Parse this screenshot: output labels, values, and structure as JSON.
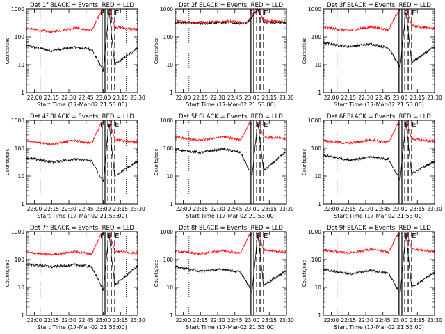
{
  "chart_data": [
    {
      "type": "line",
      "title": "Det 1f BLACK = Events, RED = LLD",
      "xlabel": "Start Time (17-Mar-02 21:53:00)",
      "ylabel": "Counts/sec",
      "yscale": "log",
      "ylim": [
        1,
        1000
      ],
      "xlim": [
        "21:53",
        "23:30"
      ],
      "xticks": [
        "22:00",
        "22:15",
        "22:30",
        "22:45",
        "23:00",
        "23:15",
        "23:30"
      ],
      "yticks": [
        "1",
        "10",
        "100",
        "1000"
      ],
      "markers": [
        "F",
        "S",
        "E"
      ],
      "series": [
        {
          "color": "#000000",
          "values": [
            {
              "x": "21:53",
              "y": 48
            },
            {
              "x": "22:15",
              "y": 32
            },
            {
              "x": "22:35",
              "y": 42
            },
            {
              "x": "22:50",
              "y": 36
            },
            {
              "x": "23:00",
              "y": 6
            },
            {
              "x": "23:05",
              "y": 900
            },
            {
              "x": "23:10",
              "y": 10
            },
            {
              "x": "23:30",
              "y": 40
            }
          ]
        },
        {
          "color": "#ff0000",
          "values": [
            {
              "x": "21:53",
              "y": 200
            },
            {
              "x": "22:15",
              "y": 150
            },
            {
              "x": "22:35",
              "y": 210
            },
            {
              "x": "22:50",
              "y": 170
            },
            {
              "x": "23:00",
              "y": 1200
            },
            {
              "x": "23:05",
              "y": 1200
            },
            {
              "x": "23:10",
              "y": 230
            },
            {
              "x": "23:30",
              "y": 180
            }
          ]
        }
      ]
    },
    {
      "type": "line",
      "title": "Det 2f BLACK = Events, RED = LLD",
      "xlabel": "Start Time (17-Mar-02 21:53:00)",
      "ylabel": "Counts/sec",
      "yscale": "log",
      "ylim": [
        1,
        1000
      ],
      "xlim": [
        "21:53",
        "23:30"
      ],
      "xticks": [
        "22:00",
        "22:15",
        "22:30",
        "22:45",
        "23:00",
        "23:15",
        "23:30"
      ],
      "yticks": [
        "1",
        "10",
        "100",
        "1000"
      ],
      "markers": [
        "F",
        "S",
        "E"
      ],
      "series": [
        {
          "color": "#000000",
          "values": [
            {
              "x": "21:53",
              "y": 330
            },
            {
              "x": "22:15",
              "y": 300
            },
            {
              "x": "22:40",
              "y": 330
            },
            {
              "x": "22:55",
              "y": 300
            },
            {
              "x": "23:05",
              "y": 1000
            },
            {
              "x": "23:10",
              "y": 350
            },
            {
              "x": "23:30",
              "y": 320
            }
          ]
        },
        {
          "color": "#ff0000",
          "values": [
            {
              "x": "21:53",
              "y": 360
            },
            {
              "x": "22:15",
              "y": 330
            },
            {
              "x": "22:40",
              "y": 370
            },
            {
              "x": "22:55",
              "y": 320
            },
            {
              "x": "23:05",
              "y": 1300
            },
            {
              "x": "23:10",
              "y": 380
            },
            {
              "x": "23:30",
              "y": 350
            }
          ]
        }
      ]
    },
    {
      "type": "line",
      "title": "Det 3f BLACK = Events, RED = LLD",
      "xlabel": "Start Time (17-Mar-02 21:53:00)",
      "ylabel": "Counts/sec",
      "yscale": "log",
      "ylim": [
        1,
        1000
      ],
      "xlim": [
        "21:53",
        "23:30"
      ],
      "xticks": [
        "22:00",
        "22:15",
        "22:30",
        "22:45",
        "23:00",
        "23:15",
        "23:30"
      ],
      "yticks": [
        "1",
        "10",
        "100",
        "1000"
      ],
      "markers": [
        "F",
        "S",
        "E"
      ],
      "series": [
        {
          "color": "#000000",
          "values": [
            {
              "x": "21:53",
              "y": 60
            },
            {
              "x": "22:15",
              "y": 45
            },
            {
              "x": "22:35",
              "y": 55
            },
            {
              "x": "22:50",
              "y": 40
            },
            {
              "x": "23:00",
              "y": 8
            },
            {
              "x": "23:05",
              "y": 900
            },
            {
              "x": "23:10",
              "y": 12
            },
            {
              "x": "23:30",
              "y": 45
            }
          ]
        },
        {
          "color": "#ff0000",
          "values": [
            {
              "x": "21:53",
              "y": 220
            },
            {
              "x": "22:15",
              "y": 170
            },
            {
              "x": "22:35",
              "y": 230
            },
            {
              "x": "22:50",
              "y": 180
            },
            {
              "x": "23:00",
              "y": 1200
            },
            {
              "x": "23:05",
              "y": 1200
            },
            {
              "x": "23:10",
              "y": 250
            },
            {
              "x": "23:30",
              "y": 200
            }
          ]
        }
      ]
    },
    {
      "type": "line",
      "title": "Det 4f BLACK = Events, RED = LLD",
      "xlabel": "Start Time (17-Mar-02 21:53:00)",
      "ylabel": "Counts/sec",
      "yscale": "log",
      "ylim": [
        1,
        1000
      ],
      "xlim": [
        "21:53",
        "23:30"
      ],
      "xticks": [
        "22:00",
        "22:15",
        "22:30",
        "22:45",
        "23:00",
        "23:15",
        "23:30"
      ],
      "yticks": [
        "1",
        "10",
        "100",
        "1000"
      ],
      "markers": [
        "F",
        "S",
        "E"
      ],
      "series": [
        {
          "color": "#000000",
          "values": [
            {
              "x": "21:53",
              "y": 45
            },
            {
              "x": "22:15",
              "y": 32
            },
            {
              "x": "22:35",
              "y": 40
            },
            {
              "x": "22:50",
              "y": 35
            },
            {
              "x": "23:00",
              "y": 6
            },
            {
              "x": "23:05",
              "y": 900
            },
            {
              "x": "23:10",
              "y": 10
            },
            {
              "x": "23:30",
              "y": 35
            }
          ]
        },
        {
          "color": "#ff0000",
          "values": [
            {
              "x": "21:53",
              "y": 180
            },
            {
              "x": "22:15",
              "y": 140
            },
            {
              "x": "22:35",
              "y": 190
            },
            {
              "x": "22:50",
              "y": 150
            },
            {
              "x": "23:00",
              "y": 1200
            },
            {
              "x": "23:05",
              "y": 1200
            },
            {
              "x": "23:10",
              "y": 200
            },
            {
              "x": "23:30",
              "y": 160
            }
          ]
        }
      ]
    },
    {
      "type": "line",
      "title": "Det 5f BLACK = Events, RED = LLD",
      "xlabel": "Start Time (17-Mar-02 21:53:00)",
      "ylabel": "Counts/sec",
      "yscale": "log",
      "ylim": [
        1,
        1000
      ],
      "xlim": [
        "21:53",
        "23:30"
      ],
      "xticks": [
        "22:00",
        "22:15",
        "22:30",
        "22:45",
        "23:00",
        "23:15",
        "23:30"
      ],
      "yticks": [
        "1",
        "10",
        "100",
        "1000"
      ],
      "markers": [
        "F",
        "S",
        "E"
      ],
      "series": [
        {
          "color": "#000000",
          "values": [
            {
              "x": "21:53",
              "y": 90
            },
            {
              "x": "22:15",
              "y": 70
            },
            {
              "x": "22:35",
              "y": 95
            },
            {
              "x": "22:50",
              "y": 70
            },
            {
              "x": "23:00",
              "y": 10
            },
            {
              "x": "23:05",
              "y": 900
            },
            {
              "x": "23:10",
              "y": 15
            },
            {
              "x": "23:30",
              "y": 80
            }
          ]
        },
        {
          "color": "#ff0000",
          "values": [
            {
              "x": "21:53",
              "y": 250
            },
            {
              "x": "22:15",
              "y": 190
            },
            {
              "x": "22:35",
              "y": 260
            },
            {
              "x": "22:50",
              "y": 200
            },
            {
              "x": "23:00",
              "y": 1200
            },
            {
              "x": "23:05",
              "y": 1200
            },
            {
              "x": "23:10",
              "y": 250
            },
            {
              "x": "23:30",
              "y": 220
            }
          ]
        }
      ]
    },
    {
      "type": "line",
      "title": "Det 6f BLACK = Events, RED = LLD",
      "xlabel": "Start Time (17-Mar-02 21:53:00)",
      "ylabel": "Counts/sec",
      "yscale": "log",
      "ylim": [
        1,
        1000
      ],
      "xlim": [
        "21:53",
        "23:30"
      ],
      "xticks": [
        "22:00",
        "22:15",
        "22:30",
        "22:45",
        "23:00",
        "23:15",
        "23:30"
      ],
      "yticks": [
        "1",
        "10",
        "100",
        "1000"
      ],
      "markers": [
        "F",
        "S",
        "E"
      ],
      "series": [
        {
          "color": "#000000",
          "values": [
            {
              "x": "21:53",
              "y": 55
            },
            {
              "x": "22:15",
              "y": 38
            },
            {
              "x": "22:35",
              "y": 48
            },
            {
              "x": "22:50",
              "y": 40
            },
            {
              "x": "23:00",
              "y": 7
            },
            {
              "x": "23:05",
              "y": 900
            },
            {
              "x": "23:10",
              "y": 12
            },
            {
              "x": "23:30",
              "y": 35
            }
          ]
        },
        {
          "color": "#ff0000",
          "values": [
            {
              "x": "21:53",
              "y": 190
            },
            {
              "x": "22:15",
              "y": 150
            },
            {
              "x": "22:35",
              "y": 200
            },
            {
              "x": "22:50",
              "y": 160
            },
            {
              "x": "23:00",
              "y": 1200
            },
            {
              "x": "23:05",
              "y": 1200
            },
            {
              "x": "23:10",
              "y": 220
            },
            {
              "x": "23:30",
              "y": 170
            }
          ]
        }
      ]
    },
    {
      "type": "line",
      "title": "Det 7f BLACK = Events, RED = LLD",
      "xlabel": "Start Time (17-Mar-02 21:53:00)",
      "ylabel": "Counts/sec",
      "yscale": "log",
      "ylim": [
        1,
        1000
      ],
      "xlim": [
        "21:53",
        "23:30"
      ],
      "xticks": [
        "22:00",
        "22:15",
        "22:30",
        "22:45",
        "23:00",
        "23:15",
        "23:30"
      ],
      "yticks": [
        "1",
        "10",
        "100",
        "1000"
      ],
      "markers": [
        "F",
        "S",
        "E"
      ],
      "series": [
        {
          "color": "#000000",
          "values": [
            {
              "x": "21:53",
              "y": 70
            },
            {
              "x": "22:15",
              "y": 55
            },
            {
              "x": "22:35",
              "y": 65
            },
            {
              "x": "22:50",
              "y": 55
            },
            {
              "x": "23:00",
              "y": 8
            },
            {
              "x": "23:05",
              "y": 900
            },
            {
              "x": "23:10",
              "y": 12
            },
            {
              "x": "23:30",
              "y": 60
            }
          ]
        },
        {
          "color": "#ff0000",
          "values": [
            {
              "x": "21:53",
              "y": 180
            },
            {
              "x": "22:15",
              "y": 150
            },
            {
              "x": "22:35",
              "y": 190
            },
            {
              "x": "22:50",
              "y": 160
            },
            {
              "x": "23:00",
              "y": 1200
            },
            {
              "x": "23:05",
              "y": 1200
            },
            {
              "x": "23:10",
              "y": 200
            },
            {
              "x": "23:30",
              "y": 170
            }
          ]
        }
      ]
    },
    {
      "type": "line",
      "title": "Det 8f BLACK = Events, RED = LLD",
      "xlabel": "Start Time (17-Mar-02 21:53:00)",
      "ylabel": "Counts/sec",
      "yscale": "log",
      "ylim": [
        1,
        1000
      ],
      "xlim": [
        "21:53",
        "23:30"
      ],
      "xticks": [
        "22:00",
        "22:15",
        "22:30",
        "22:45",
        "23:00",
        "23:15",
        "23:30"
      ],
      "yticks": [
        "1",
        "10",
        "100",
        "1000"
      ],
      "markers": [
        "F",
        "S",
        "E"
      ],
      "series": [
        {
          "color": "#000000",
          "values": [
            {
              "x": "21:53",
              "y": 55
            },
            {
              "x": "22:15",
              "y": 38
            },
            {
              "x": "22:35",
              "y": 45
            },
            {
              "x": "22:50",
              "y": 35
            },
            {
              "x": "23:00",
              "y": 7
            },
            {
              "x": "23:05",
              "y": 900
            },
            {
              "x": "23:10",
              "y": 12
            },
            {
              "x": "23:30",
              "y": 40
            }
          ]
        },
        {
          "color": "#ff0000",
          "values": [
            {
              "x": "21:53",
              "y": 200
            },
            {
              "x": "22:15",
              "y": 160
            },
            {
              "x": "22:35",
              "y": 210
            },
            {
              "x": "22:50",
              "y": 170
            },
            {
              "x": "23:00",
              "y": 1200
            },
            {
              "x": "23:05",
              "y": 1200
            },
            {
              "x": "23:10",
              "y": 220
            },
            {
              "x": "23:30",
              "y": 180
            }
          ]
        }
      ]
    },
    {
      "type": "line",
      "title": "Det 9f BLACK = Events, RED = LLD",
      "xlabel": "Start Time (17-Mar-02 21:53:00)",
      "ylabel": "Counts/sec",
      "yscale": "log",
      "ylim": [
        1,
        1000
      ],
      "xlim": [
        "21:53",
        "23:30"
      ],
      "xticks": [
        "22:00",
        "22:15",
        "22:30",
        "22:45",
        "23:00",
        "23:15",
        "23:30"
      ],
      "yticks": [
        "1",
        "10",
        "100",
        "1000"
      ],
      "markers": [
        "F",
        "S",
        "E"
      ],
      "series": [
        {
          "color": "#000000",
          "values": [
            {
              "x": "21:53",
              "y": 45
            },
            {
              "x": "22:15",
              "y": 30
            },
            {
              "x": "22:35",
              "y": 40
            },
            {
              "x": "22:50",
              "y": 32
            },
            {
              "x": "23:00",
              "y": 6
            },
            {
              "x": "23:05",
              "y": 900
            },
            {
              "x": "23:10",
              "y": 10
            },
            {
              "x": "23:30",
              "y": 35
            }
          ]
        },
        {
          "color": "#ff0000",
          "values": [
            {
              "x": "21:53",
              "y": 220
            },
            {
              "x": "22:15",
              "y": 170
            },
            {
              "x": "22:35",
              "y": 230
            },
            {
              "x": "22:50",
              "y": 180
            },
            {
              "x": "23:00",
              "y": 1200
            },
            {
              "x": "23:05",
              "y": 1200
            },
            {
              "x": "23:10",
              "y": 240
            },
            {
              "x": "23:30",
              "y": 190
            }
          ]
        }
      ]
    }
  ]
}
